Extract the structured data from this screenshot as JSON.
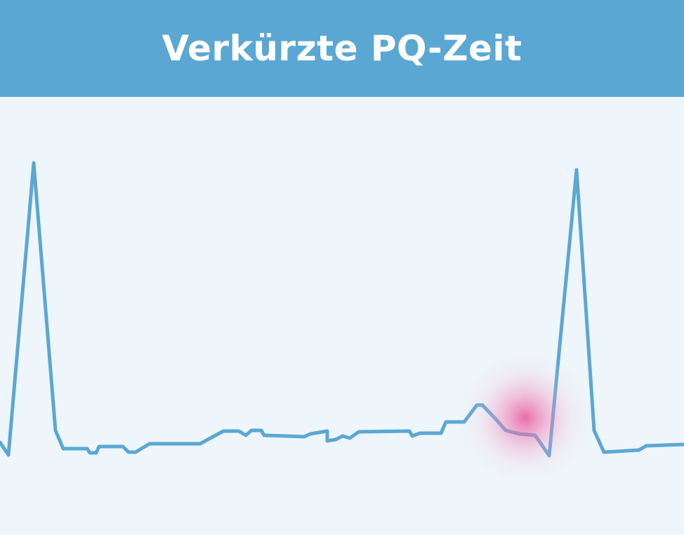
{
  "header": {
    "title": "Verkürzte PQ-Zeit"
  }
}
